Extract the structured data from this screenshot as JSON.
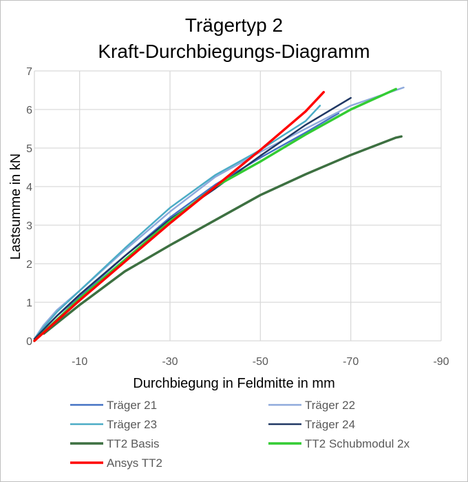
{
  "chart_data": {
    "type": "line",
    "title": [
      "Trägertyp 2",
      "Kraft-Durchbiegungs-Diagramm"
    ],
    "xlabel": "Durchbiegung  in Feldmitte in mm",
    "ylabel": "Lastsumme in kN",
    "xlim": [
      0,
      -90
    ],
    "ylim": [
      0,
      7
    ],
    "xticks": [
      -10,
      -30,
      -50,
      -70,
      -90
    ],
    "yticks": [
      0,
      1,
      2,
      3,
      4,
      5,
      6,
      7
    ],
    "grid": true,
    "legend_position": "bottom",
    "series": [
      {
        "name": "Träger 21",
        "color": "#4472C4",
        "width": 2.5,
        "x": [
          0,
          -2,
          -5,
          -10,
          -20,
          -30,
          -40,
          -50,
          -60,
          -67.3
        ],
        "y": [
          0.05,
          0.3,
          0.65,
          1.15,
          2.2,
          3.2,
          4.05,
          4.75,
          5.4,
          5.9
        ]
      },
      {
        "name": "Träger 22",
        "color": "#8FAADC",
        "width": 2.5,
        "x": [
          0,
          -2,
          -5,
          -10,
          -20,
          -30,
          -40,
          -50,
          -60,
          -70,
          -81.7
        ],
        "y": [
          0.05,
          0.4,
          0.8,
          1.3,
          2.35,
          3.35,
          4.25,
          4.9,
          5.5,
          6.1,
          6.57
        ]
      },
      {
        "name": "Träger 23",
        "color": "#4BACC6",
        "width": 2.5,
        "x": [
          0,
          -2,
          -5,
          -10,
          -20,
          -30,
          -40,
          -50,
          -60,
          -63.2
        ],
        "y": [
          0.05,
          0.35,
          0.75,
          1.3,
          2.4,
          3.45,
          4.3,
          4.95,
          5.7,
          6.1
        ]
      },
      {
        "name": "Träger 24",
        "color": "#203864",
        "width": 2.5,
        "x": [
          0,
          -5,
          -10,
          -20,
          -30,
          -40,
          -50,
          -60,
          -70
        ],
        "y": [
          0.05,
          0.65,
          1.2,
          2.2,
          3.15,
          3.95,
          4.8,
          5.6,
          6.3
        ]
      },
      {
        "name": "TT2 Basis",
        "color": "#3D7041",
        "width": 3.5,
        "x": [
          -2.1,
          -10,
          -20,
          -30,
          -40,
          -50,
          -60,
          -70,
          -80,
          -81.2
        ],
        "y": [
          0.19,
          0.93,
          1.8,
          2.48,
          3.13,
          3.78,
          4.32,
          4.82,
          5.27,
          5.3
        ]
      },
      {
        "name": "TT2 Schubmodul 2x",
        "color": "#33CC33",
        "width": 3.5,
        "x": [
          0,
          -10,
          -20,
          -30,
          -40,
          -50,
          -60,
          -70,
          -80
        ],
        "y": [
          0,
          1.1,
          2.1,
          3.1,
          4.0,
          4.65,
          5.35,
          6.0,
          6.53
        ]
      },
      {
        "name": "Ansys TT2",
        "color": "#FF0000",
        "width": 3.5,
        "x": [
          0,
          -10,
          -20,
          -30,
          -40,
          -50,
          -60,
          -64
        ],
        "y": [
          0,
          1.05,
          2.05,
          3.05,
          4.0,
          4.95,
          5.95,
          6.45
        ]
      }
    ]
  }
}
